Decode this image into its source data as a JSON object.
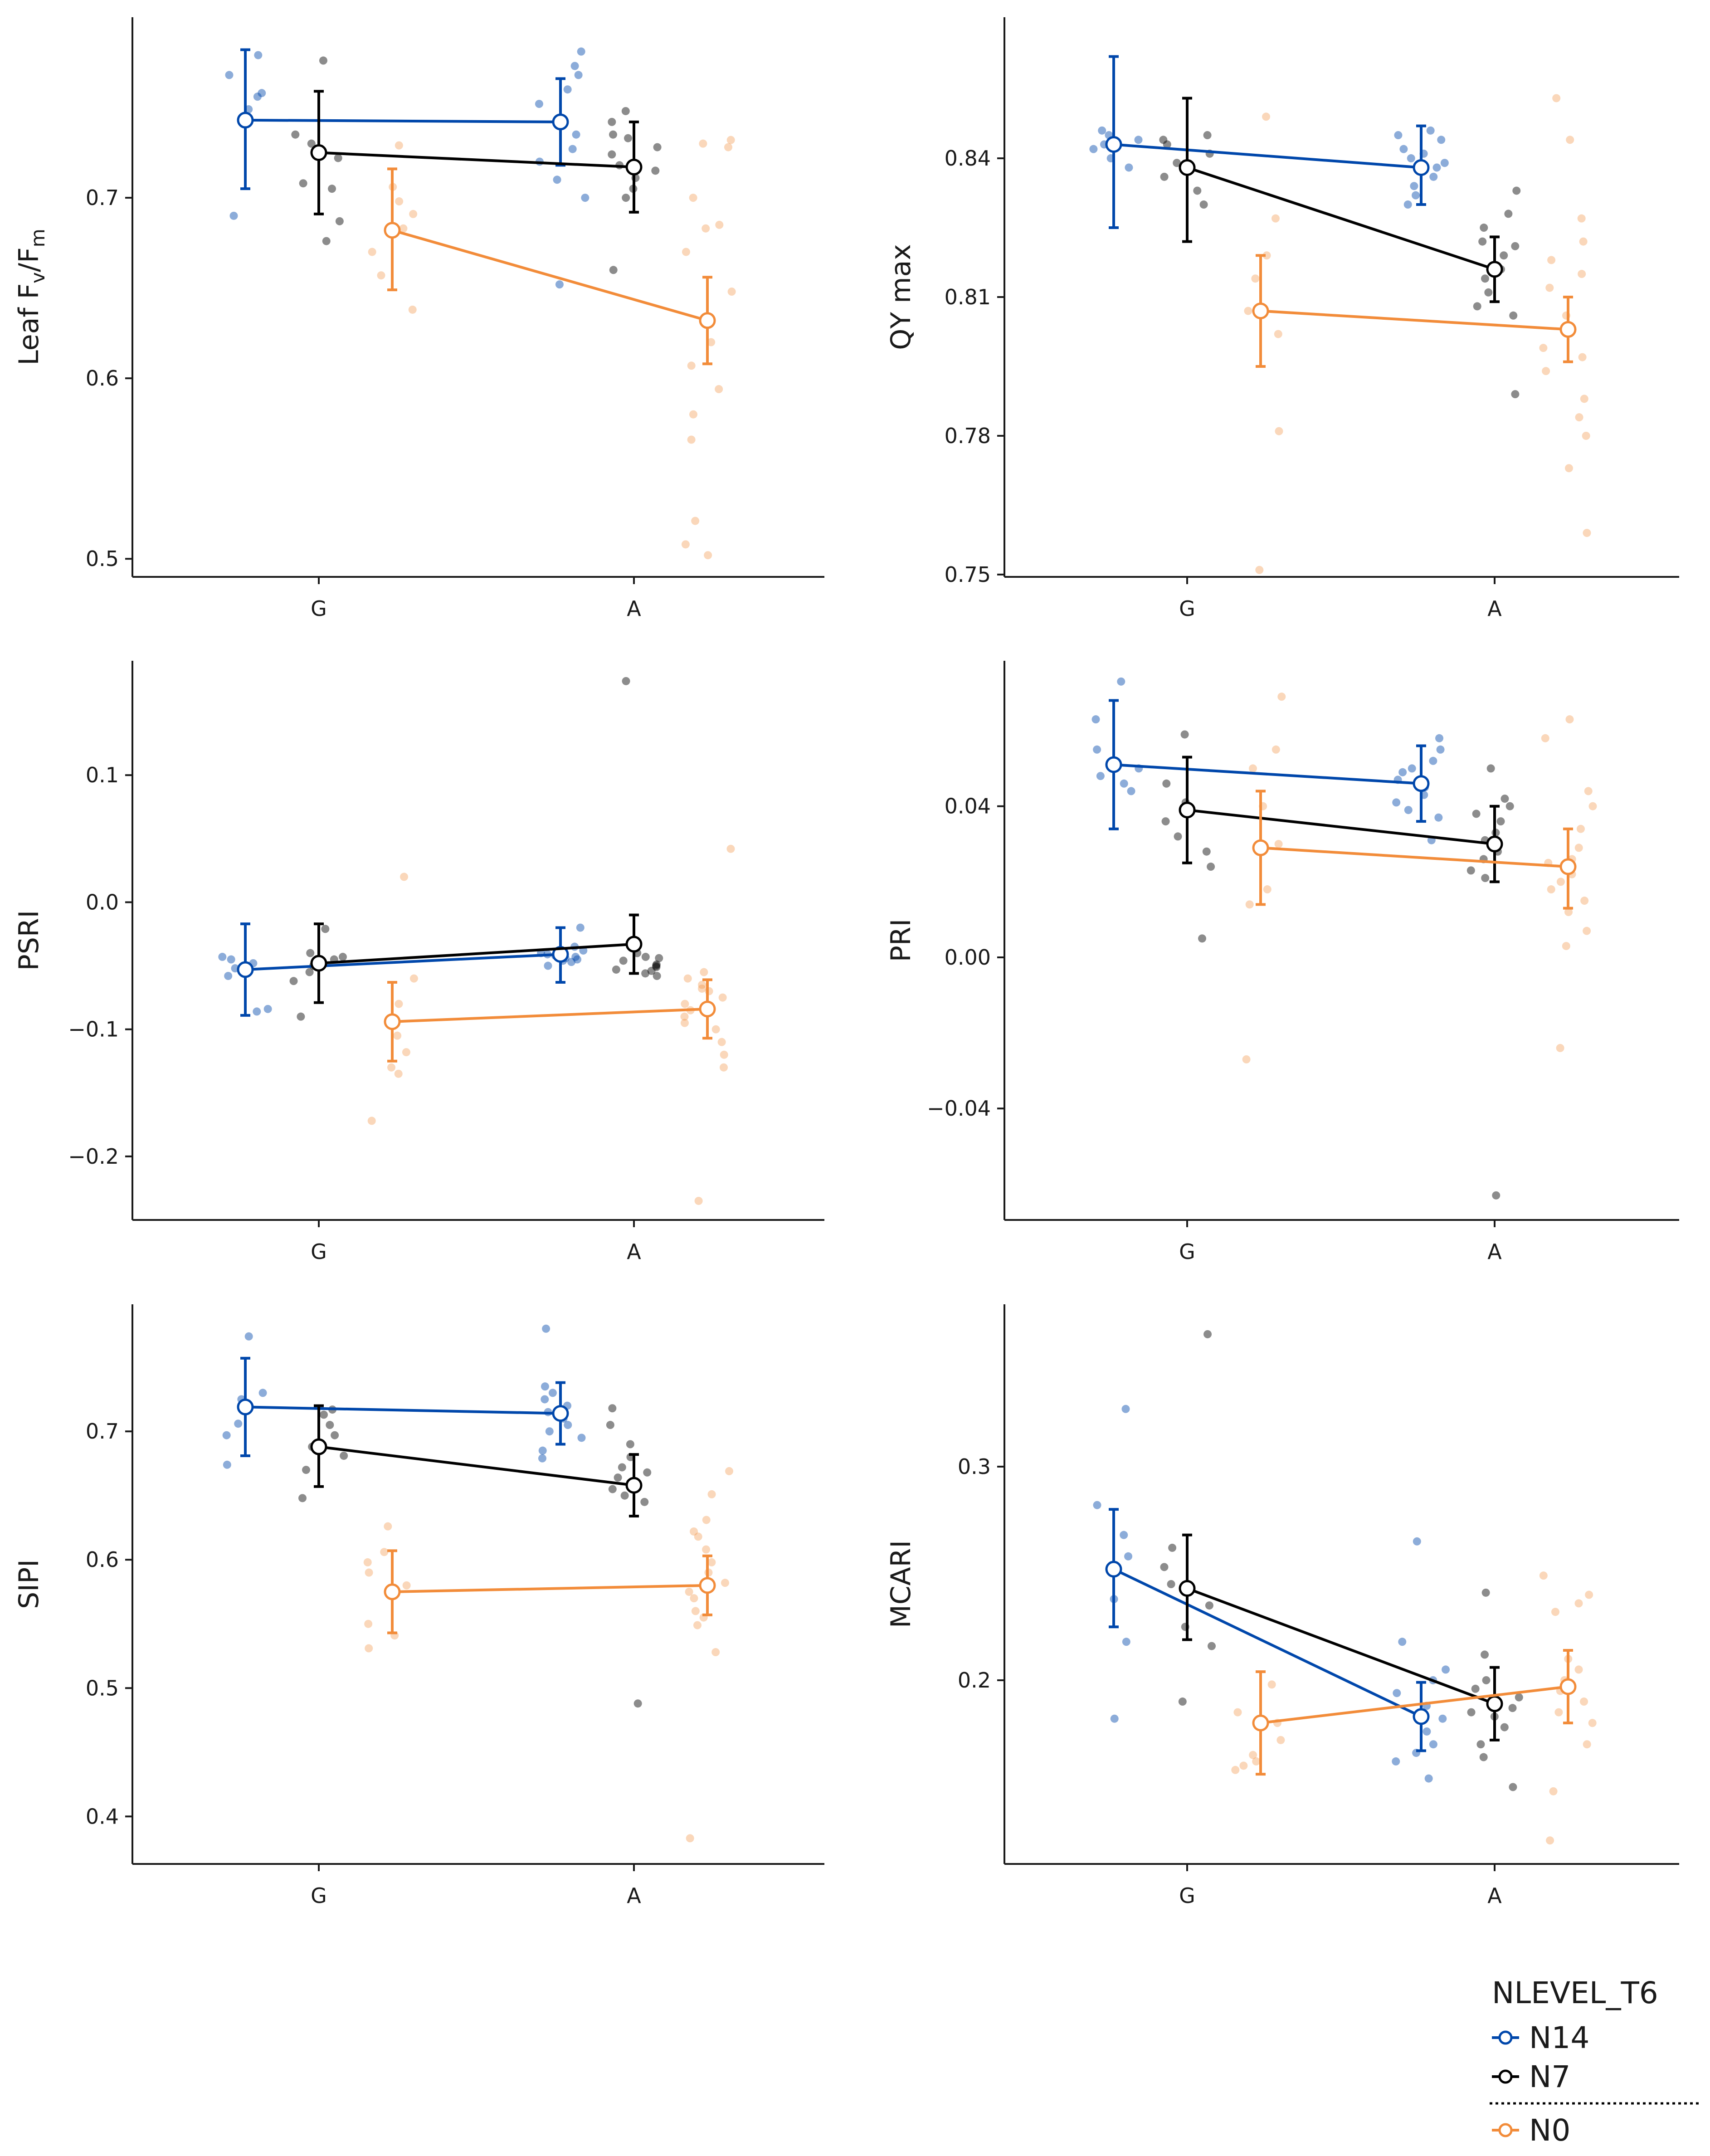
{
  "legend": {
    "title": "NLEVEL_T6",
    "items": [
      {
        "label": "N14",
        "color": "#0047ab"
      },
      {
        "label": "N7",
        "color": "#000000"
      },
      {
        "label": "N0",
        "color": "#f28c3a"
      }
    ]
  },
  "chart_data": [
    {
      "type": "scatter",
      "id": "fvfm",
      "title": "",
      "xlabel": "",
      "ylabel": "Leaf Fv/Fm",
      "ylabel_parts": [
        {
          "text": "Leaf F",
          "sub": false
        },
        {
          "text": "v",
          "sub": true
        },
        {
          "text": "/F",
          "sub": false
        },
        {
          "text": "m",
          "sub": true
        }
      ],
      "categories": [
        "G",
        "A"
      ],
      "ylim": [
        0.49,
        0.8
      ],
      "yticks": [
        0.5,
        0.6,
        0.7
      ],
      "ytick_labels": [
        "0.5",
        "0.6",
        "0.7"
      ],
      "series": [
        {
          "name": "N14",
          "mean": [
            0.743,
            0.742
          ],
          "lower": [
            0.705,
            0.718
          ],
          "upper": [
            0.782,
            0.766
          ],
          "points": [
            [
              0.768,
              0.756,
              0.749,
              0.741,
              0.69,
              0.758,
              0.779
            ],
            [
              0.773,
              0.768,
              0.76,
              0.752,
              0.744,
              0.735,
              0.727,
              0.72,
              0.71,
              0.7,
              0.781,
              0.652
            ]
          ]
        },
        {
          "name": "N7",
          "mean": [
            0.725,
            0.717
          ],
          "lower": [
            0.691,
            0.692
          ],
          "upper": [
            0.759,
            0.742
          ],
          "points": [
            [
              0.776,
              0.735,
              0.73,
              0.722,
              0.708,
              0.687,
              0.676,
              0.705
            ],
            [
              0.748,
              0.742,
              0.735,
              0.728,
              0.724,
              0.718,
              0.711,
              0.705,
              0.7,
              0.66,
              0.733,
              0.715
            ]
          ]
        },
        {
          "name": "N0",
          "mean": [
            0.682,
            0.632
          ],
          "lower": [
            0.649,
            0.608
          ],
          "upper": [
            0.716,
            0.656
          ],
          "points": [
            [
              0.729,
              0.706,
              0.691,
              0.683,
              0.67,
              0.657,
              0.638,
              0.698
            ],
            [
              0.732,
              0.728,
              0.685,
              0.67,
              0.648,
              0.62,
              0.607,
              0.594,
              0.58,
              0.566,
              0.521,
              0.508,
              0.502,
              0.7,
              0.683,
              0.73
            ]
          ]
        }
      ]
    },
    {
      "type": "scatter",
      "id": "qymax",
      "title": "",
      "xlabel": "",
      "ylabel": "QY max",
      "ylabel_parts": [
        {
          "text": "QY max",
          "sub": false
        }
      ],
      "categories": [
        "G",
        "A"
      ],
      "ylim": [
        0.7495,
        0.8705
      ],
      "yticks": [
        0.75,
        0.78,
        0.81,
        0.84
      ],
      "ytick_labels": [
        "0.75",
        "0.78",
        "0.81",
        "0.84"
      ],
      "series": [
        {
          "name": "N14",
          "mean": [
            0.843,
            0.838
          ],
          "lower": [
            0.825,
            0.83
          ],
          "upper": [
            0.862,
            0.847
          ],
          "points": [
            [
              0.846,
              0.844,
              0.842,
              0.84,
              0.838,
              0.845,
              0.843
            ],
            [
              0.846,
              0.844,
              0.842,
              0.84,
              0.838,
              0.836,
              0.834,
              0.832,
              0.83,
              0.845,
              0.841,
              0.839
            ]
          ]
        },
        {
          "name": "N7",
          "mean": [
            0.838,
            0.816
          ],
          "lower": [
            0.822,
            0.809
          ],
          "upper": [
            0.853,
            0.823
          ],
          "points": [
            [
              0.845,
              0.843,
              0.841,
              0.839,
              0.836,
              0.833,
              0.83,
              0.844
            ],
            [
              0.833,
              0.828,
              0.825,
              0.822,
              0.819,
              0.816,
              0.814,
              0.811,
              0.808,
              0.806,
              0.789,
              0.821
            ]
          ]
        },
        {
          "name": "N0",
          "mean": [
            0.807,
            0.803
          ],
          "lower": [
            0.795,
            0.796
          ],
          "upper": [
            0.819,
            0.81
          ],
          "points": [
            [
              0.849,
              0.827,
              0.819,
              0.814,
              0.807,
              0.802,
              0.781,
              0.751
            ],
            [
              0.853,
              0.844,
              0.827,
              0.822,
              0.818,
              0.812,
              0.806,
              0.799,
              0.797,
              0.794,
              0.788,
              0.784,
              0.78,
              0.773,
              0.759,
              0.815
            ]
          ]
        }
      ]
    },
    {
      "type": "scatter",
      "id": "psri",
      "title": "",
      "xlabel": "",
      "ylabel": "PSRI",
      "ylabel_parts": [
        {
          "text": "PSRI",
          "sub": false
        }
      ],
      "categories": [
        "G",
        "A"
      ],
      "ylim": [
        -0.25,
        0.19
      ],
      "yticks": [
        -0.2,
        -0.1,
        0.0,
        0.1
      ],
      "ytick_labels": [
        "−0.2",
        "−0.1",
        "0.0",
        "0.1"
      ],
      "series": [
        {
          "name": "N14",
          "mean": [
            -0.053,
            -0.041
          ],
          "lower": [
            -0.089,
            -0.063
          ],
          "upper": [
            -0.017,
            -0.02
          ],
          "points": [
            [
              -0.043,
              -0.048,
              -0.052,
              -0.058,
              -0.084,
              -0.086,
              -0.045
            ],
            [
              -0.02,
              -0.035,
              -0.04,
              -0.043,
              -0.045,
              -0.047,
              -0.05,
              -0.038,
              -0.042,
              -0.046,
              -0.044,
              -0.041
            ]
          ]
        },
        {
          "name": "N7",
          "mean": [
            -0.048,
            -0.033
          ],
          "lower": [
            -0.079,
            -0.056
          ],
          "upper": [
            -0.017,
            -0.01
          ],
          "points": [
            [
              -0.021,
              -0.04,
              -0.045,
              -0.05,
              -0.055,
              -0.062,
              -0.09,
              -0.043
            ],
            [
              0.174,
              -0.04,
              -0.043,
              -0.046,
              -0.05,
              -0.053,
              -0.056,
              -0.058,
              -0.054,
              -0.049,
              -0.051,
              -0.044
            ]
          ]
        },
        {
          "name": "N0",
          "mean": [
            -0.094,
            -0.084
          ],
          "lower": [
            -0.125,
            -0.107
          ],
          "upper": [
            -0.063,
            -0.061
          ],
          "points": [
            [
              0.02,
              -0.06,
              -0.08,
              -0.105,
              -0.118,
              -0.13,
              -0.135,
              -0.172
            ],
            [
              0.042,
              -0.055,
              -0.06,
              -0.065,
              -0.07,
              -0.075,
              -0.08,
              -0.09,
              -0.1,
              -0.11,
              -0.12,
              -0.13,
              -0.235,
              -0.068,
              -0.085,
              -0.095
            ]
          ]
        }
      ]
    },
    {
      "type": "scatter",
      "id": "pri",
      "title": "",
      "xlabel": "",
      "ylabel": "PRI",
      "ylabel_parts": [
        {
          "text": "PRI",
          "sub": false
        }
      ],
      "categories": [
        "G",
        "A"
      ],
      "ylim": [
        -0.0695,
        0.0785
      ],
      "yticks": [
        -0.04,
        0.0,
        0.04
      ],
      "ytick_labels": [
        "−0.04",
        "0.00",
        "0.04"
      ],
      "series": [
        {
          "name": "N14",
          "mean": [
            0.051,
            0.046
          ],
          "lower": [
            0.034,
            0.036
          ],
          "upper": [
            0.068,
            0.056
          ],
          "points": [
            [
              0.073,
              0.063,
              0.055,
              0.05,
              0.046,
              0.044,
              0.048
            ],
            [
              0.058,
              0.055,
              0.052,
              0.049,
              0.047,
              0.045,
              0.043,
              0.041,
              0.039,
              0.037,
              0.031,
              0.05
            ]
          ]
        },
        {
          "name": "N7",
          "mean": [
            0.039,
            0.03
          ],
          "lower": [
            0.025,
            0.02
          ],
          "upper": [
            0.053,
            0.04
          ],
          "points": [
            [
              0.059,
              0.046,
              0.041,
              0.036,
              0.032,
              0.028,
              0.024,
              0.005
            ],
            [
              0.05,
              0.042,
              0.038,
              0.036,
              0.033,
              0.031,
              0.028,
              0.026,
              0.023,
              0.021,
              -0.063,
              0.04
            ]
          ]
        },
        {
          "name": "N0",
          "mean": [
            0.029,
            0.024
          ],
          "lower": [
            0.014,
            0.013
          ],
          "upper": [
            0.044,
            0.034
          ],
          "points": [
            [
              0.069,
              0.055,
              0.05,
              0.04,
              0.03,
              0.018,
              0.014,
              -0.027
            ],
            [
              0.063,
              0.058,
              0.044,
              0.034,
              0.029,
              0.025,
              0.022,
              0.02,
              0.018,
              0.015,
              0.012,
              0.007,
              0.003,
              -0.024,
              0.04,
              0.026
            ]
          ]
        }
      ]
    },
    {
      "type": "scatter",
      "id": "sipi",
      "title": "",
      "xlabel": "",
      "ylabel": "SIPI",
      "ylabel_parts": [
        {
          "text": "SIPI",
          "sub": false
        }
      ],
      "categories": [
        "G",
        "A"
      ],
      "ylim": [
        0.363,
        0.799
      ],
      "yticks": [
        0.4,
        0.5,
        0.6,
        0.7
      ],
      "ytick_labels": [
        "0.4",
        "0.5",
        "0.6",
        "0.7"
      ],
      "series": [
        {
          "name": "N14",
          "mean": [
            0.719,
            0.714
          ],
          "lower": [
            0.681,
            0.69
          ],
          "upper": [
            0.757,
            0.738
          ],
          "points": [
            [
              0.774,
              0.73,
              0.72,
              0.706,
              0.697,
              0.674,
              0.725
            ],
            [
              0.78,
              0.735,
              0.73,
              0.725,
              0.72,
              0.715,
              0.71,
              0.705,
              0.7,
              0.695,
              0.685,
              0.679
            ]
          ]
        },
        {
          "name": "N7",
          "mean": [
            0.688,
            0.658
          ],
          "lower": [
            0.657,
            0.634
          ],
          "upper": [
            0.72,
            0.682
          ],
          "points": [
            [
              0.717,
              0.705,
              0.697,
              0.688,
              0.681,
              0.67,
              0.648,
              0.713
            ],
            [
              0.718,
              0.705,
              0.69,
              0.68,
              0.672,
              0.668,
              0.66,
              0.655,
              0.65,
              0.645,
              0.488,
              0.664
            ]
          ]
        },
        {
          "name": "N0",
          "mean": [
            0.575,
            0.58
          ],
          "lower": [
            0.543,
            0.557
          ],
          "upper": [
            0.607,
            0.603
          ],
          "points": [
            [
              0.626,
              0.606,
              0.598,
              0.59,
              0.58,
              0.55,
              0.541,
              0.531
            ],
            [
              0.669,
              0.651,
              0.631,
              0.622,
              0.608,
              0.598,
              0.59,
              0.582,
              0.575,
              0.57,
              0.56,
              0.555,
              0.549,
              0.528,
              0.383,
              0.618
            ]
          ]
        }
      ]
    },
    {
      "type": "scatter",
      "id": "mcari",
      "title": "",
      "xlabel": "",
      "ylabel": "MCARI",
      "ylabel_parts": [
        {
          "text": "MCARI",
          "sub": false
        }
      ],
      "categories": [
        "G",
        "A"
      ],
      "ylim": [
        0.114,
        0.376
      ],
      "yticks": [
        0.2,
        0.3
      ],
      "ytick_labels": [
        "0.2",
        "0.3"
      ],
      "series": [
        {
          "name": "N14",
          "mean": [
            0.252,
            0.183
          ],
          "lower": [
            0.225,
            0.167
          ],
          "upper": [
            0.28,
            0.199
          ],
          "points": [
            [
              0.327,
              0.282,
              0.268,
              0.258,
              0.238,
              0.218,
              0.182
            ],
            [
              0.265,
              0.218,
              0.205,
              0.2,
              0.194,
              0.188,
              0.182,
              0.176,
              0.17,
              0.166,
              0.162,
              0.154
            ]
          ]
        },
        {
          "name": "N7",
          "mean": [
            0.243,
            0.189
          ],
          "lower": [
            0.219,
            0.172
          ],
          "upper": [
            0.268,
            0.206
          ],
          "points": [
            [
              0.362,
              0.262,
              0.245,
              0.235,
              0.225,
              0.216,
              0.19,
              0.253
            ],
            [
              0.241,
              0.212,
              0.2,
              0.192,
              0.187,
              0.183,
              0.178,
              0.17,
              0.164,
              0.15,
              0.196,
              0.185
            ]
          ]
        },
        {
          "name": "N0",
          "mean": [
            0.18,
            0.197
          ],
          "lower": [
            0.156,
            0.18
          ],
          "upper": [
            0.204,
            0.214
          ],
          "points": [
            [
              0.198,
              0.18,
              0.172,
              0.165,
              0.16,
              0.158,
              0.162,
              0.185
            ],
            [
              0.249,
              0.24,
              0.232,
              0.21,
              0.2,
              0.195,
              0.19,
              0.185,
              0.18,
              0.17,
              0.148,
              0.125,
              0.236,
              0.205
            ]
          ]
        }
      ]
    }
  ]
}
